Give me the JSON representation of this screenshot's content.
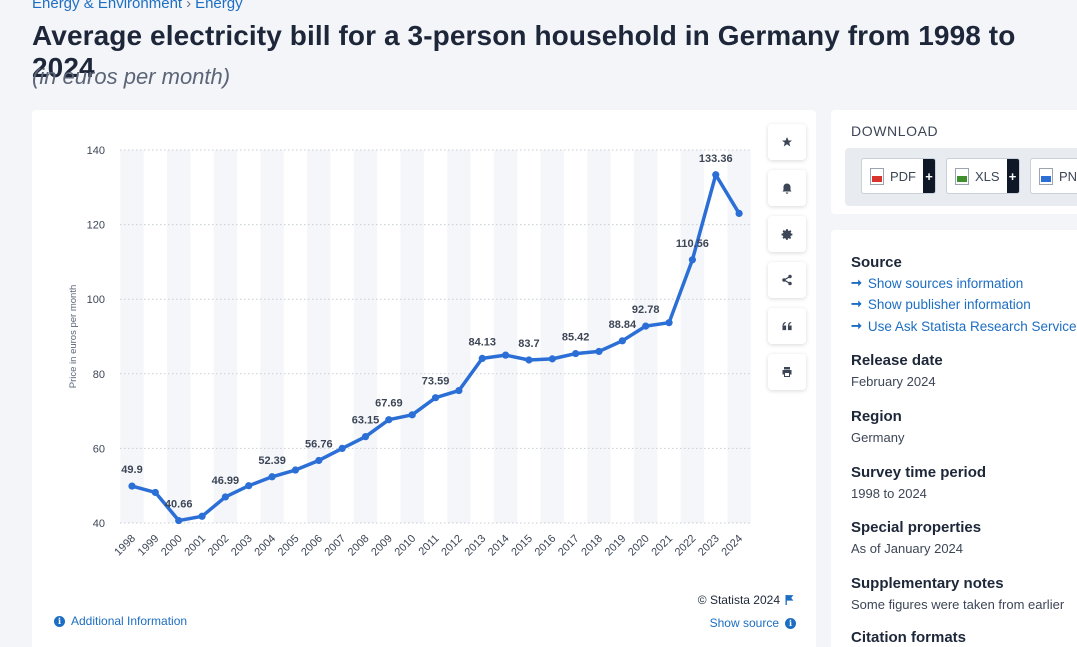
{
  "breadcrumb": [
    "Energy & Environment",
    "Energy"
  ],
  "title": "Average electricity bill for a 3-person household in Germany from 1998 to 2024",
  "subtitle": "(in euros per month)",
  "toolbar": {
    "icons": [
      "star-icon",
      "bell-icon",
      "gear-icon",
      "share-icon",
      "quote-icon",
      "print-icon"
    ]
  },
  "chart_data": {
    "type": "line",
    "ylabel": "Price in euros per month",
    "xlabel": "",
    "ylim": [
      40,
      140
    ],
    "yticks": [
      40,
      60,
      80,
      100,
      120,
      140
    ],
    "grid": true,
    "categories": [
      "1998",
      "1999",
      "2000",
      "2001",
      "2002",
      "2003",
      "2004",
      "2005",
      "2006",
      "2007",
      "2008",
      "2009",
      "2010",
      "2011",
      "2012",
      "2013",
      "2014",
      "2015",
      "2016",
      "2017",
      "2018",
      "2019",
      "2020",
      "2021",
      "2022",
      "2023",
      "2024"
    ],
    "series": [
      {
        "values": [
          49.9,
          48.2,
          40.66,
          41.8,
          46.99,
          50.0,
          52.39,
          54.2,
          56.76,
          60.0,
          63.15,
          67.69,
          69.0,
          73.59,
          75.5,
          84.13,
          85.0,
          83.7,
          84.0,
          85.42,
          86.0,
          88.84,
          92.78,
          93.7,
          110.56,
          133.36,
          123.0
        ],
        "color": "#2b6fd6"
      }
    ],
    "data_labels": [
      {
        "index": 0,
        "text": "49.9"
      },
      {
        "index": 2,
        "text": "40.66"
      },
      {
        "index": 4,
        "text": "46.99"
      },
      {
        "index": 6,
        "text": "52.39"
      },
      {
        "index": 8,
        "text": "56.76"
      },
      {
        "index": 10,
        "text": "63.15"
      },
      {
        "index": 11,
        "text": "67.69"
      },
      {
        "index": 13,
        "text": "73.59"
      },
      {
        "index": 15,
        "text": "84.13"
      },
      {
        "index": 17,
        "text": "83.7"
      },
      {
        "index": 19,
        "text": "85.42"
      },
      {
        "index": 21,
        "text": "88.84"
      },
      {
        "index": 22,
        "text": "92.78"
      },
      {
        "index": 24,
        "text": "110.56"
      },
      {
        "index": 25,
        "text": "133.36"
      }
    ]
  },
  "footer": {
    "copyright": "© Statista 2024",
    "show_source": "Show source",
    "additional_info": "Additional Information"
  },
  "download": {
    "title": "DOWNLOAD",
    "buttons": [
      {
        "label": "PDF",
        "color": "#d9342b"
      },
      {
        "label": "XLS",
        "color": "#3f8f2f"
      },
      {
        "label": "PNG",
        "color": "#2b6fd6"
      }
    ]
  },
  "info": {
    "source_title": "Source",
    "source_links": [
      "Show sources information",
      "Show publisher information",
      "Use Ask Statista Research Service"
    ],
    "release_title": "Release date",
    "release_value": "February 2024",
    "region_title": "Region",
    "region_value": "Germany",
    "survey_title": "Survey time period",
    "survey_value": "1998 to 2024",
    "special_title": "Special properties",
    "special_value": "As of January 2024",
    "supp_title": "Supplementary notes",
    "supp_value": "Some figures were taken from earlier",
    "citation_title": "Citation formats"
  }
}
